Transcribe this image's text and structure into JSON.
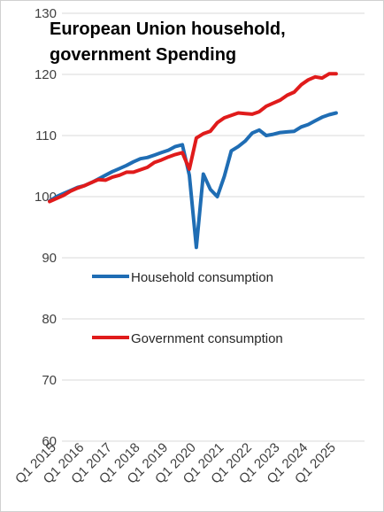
{
  "chart_data": {
    "type": "line",
    "title_lines": [
      "European Union household,",
      "government Spending"
    ],
    "ylim": [
      60,
      130
    ],
    "yticks": [
      60,
      70,
      80,
      90,
      100,
      110,
      120,
      130
    ],
    "grid": true,
    "legend_placement": "center-left inside plot",
    "x": [
      "Q1 2015",
      "Q2 2015",
      "Q3 2015",
      "Q4 2015",
      "Q1 2016",
      "Q2 2016",
      "Q3 2016",
      "Q4 2016",
      "Q1 2017",
      "Q2 2017",
      "Q3 2017",
      "Q4 2017",
      "Q1 2018",
      "Q2 2018",
      "Q3 2018",
      "Q4 2018",
      "Q1 2019",
      "Q2 2019",
      "Q3 2019",
      "Q4 2019",
      "Q1 2020",
      "Q2 2020",
      "Q3 2020",
      "Q4 2020",
      "Q1 2021",
      "Q2 2021",
      "Q3 2021",
      "Q4 2021",
      "Q1 2022",
      "Q2 2022",
      "Q3 2022",
      "Q4 2022",
      "Q1 2023",
      "Q2 2023",
      "Q3 2023",
      "Q4 2023",
      "Q1 2024",
      "Q2 2024",
      "Q3 2024",
      "Q4 2024",
      "Q1 2025",
      "Q2 2025"
    ],
    "xticks": [
      "Q1 2015",
      "Q1 2016",
      "Q1 2017",
      "Q1 2018",
      "Q1 2019",
      "Q1 2020",
      "Q1 2021",
      "Q1 2022",
      "Q1 2023",
      "Q1 2024",
      "Q1 2025"
    ],
    "series": [
      {
        "name": "Household consumption",
        "color": "#1f6db4",
        "values": [
          99.3,
          100.0,
          100.5,
          101.0,
          101.5,
          101.8,
          102.3,
          102.9,
          103.5,
          104.1,
          104.6,
          105.1,
          105.7,
          106.2,
          106.4,
          106.8,
          107.2,
          107.6,
          108.2,
          108.5,
          103.5,
          91.7,
          103.7,
          101.2,
          100.0,
          103.3,
          107.5,
          108.2,
          109.1,
          110.4,
          110.9,
          110.0,
          110.2,
          110.5,
          110.6,
          110.7,
          111.4,
          111.8,
          112.4,
          113.0,
          113.4,
          113.7
        ]
      },
      {
        "name": "Government consumption",
        "color": "#e01b1b",
        "values": [
          99.2,
          99.7,
          100.2,
          100.9,
          101.4,
          101.8,
          102.3,
          102.8,
          102.7,
          103.2,
          103.5,
          104.0,
          104.0,
          104.4,
          104.8,
          105.6,
          106.0,
          106.5,
          106.9,
          107.2,
          104.5,
          109.6,
          110.3,
          110.7,
          112.1,
          112.9,
          113.3,
          113.7,
          113.6,
          113.5,
          113.9,
          114.8,
          115.3,
          115.8,
          116.6,
          117.1,
          118.3,
          119.1,
          119.6,
          119.4,
          120.1,
          120.1
        ]
      }
    ]
  }
}
